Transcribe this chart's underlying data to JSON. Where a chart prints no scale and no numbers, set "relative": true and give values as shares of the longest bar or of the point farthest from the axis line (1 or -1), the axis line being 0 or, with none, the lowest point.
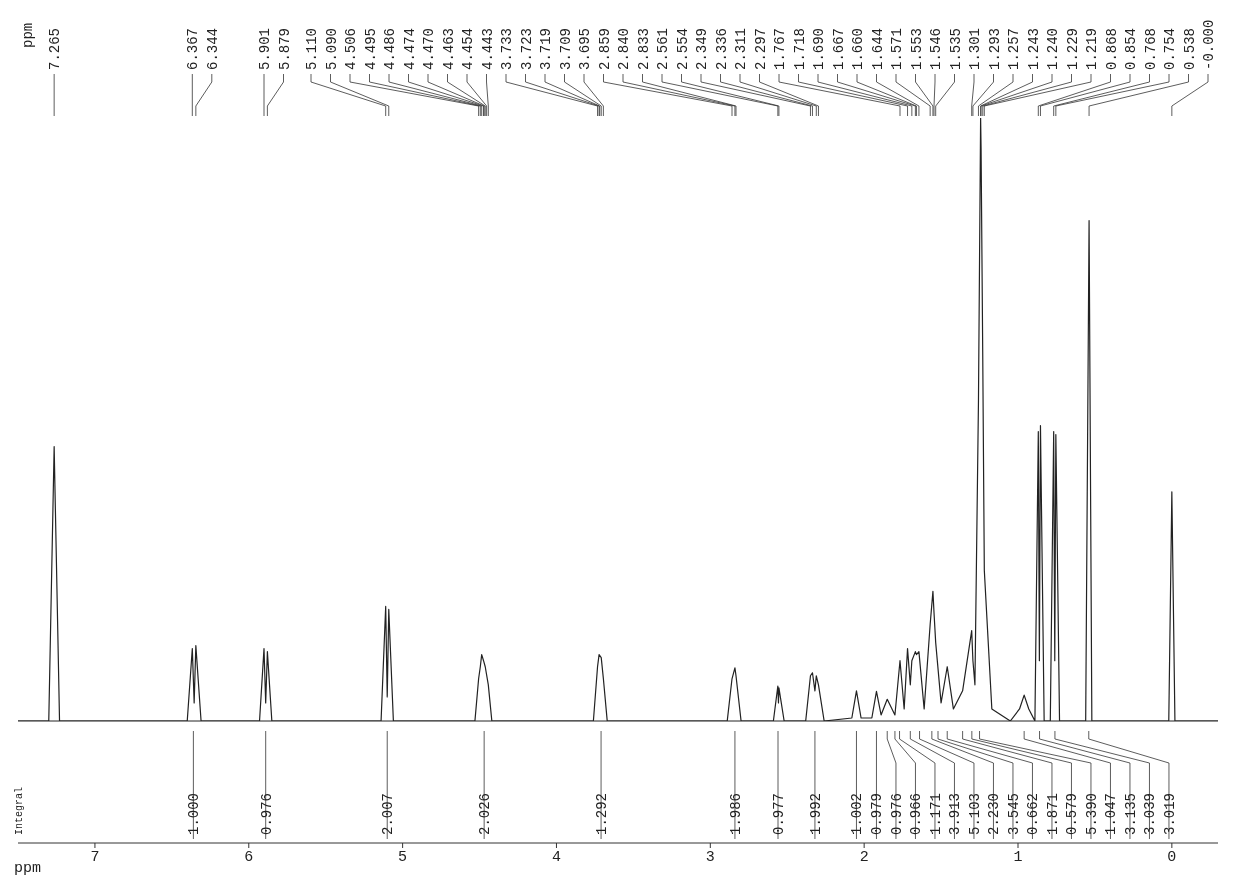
{
  "chart_data": {
    "type": "line",
    "relative": true,
    "xlabel": "ppm",
    "color": "#222222",
    "marker": "none",
    "line_style": "solid",
    "xlim": [
      7.5,
      -0.3
    ],
    "xticks": [
      7,
      6,
      5,
      4,
      3,
      2,
      1,
      0
    ],
    "x": [
      7.5,
      7.3,
      7.265,
      7.23,
      6.4,
      6.367,
      6.355,
      6.344,
      6.31,
      5.93,
      5.901,
      5.89,
      5.879,
      5.85,
      5.14,
      5.11,
      5.1,
      5.09,
      5.06,
      4.53,
      4.506,
      4.495,
      4.486,
      4.474,
      4.463,
      4.443,
      4.42,
      3.76,
      3.733,
      3.723,
      3.709,
      3.695,
      3.67,
      2.89,
      2.859,
      2.84,
      2.833,
      2.8,
      2.59,
      2.561,
      2.557,
      2.554,
      2.52,
      2.38,
      2.349,
      2.336,
      2.32,
      2.311,
      2.297,
      2.26,
      2.08,
      2.05,
      2.02,
      1.95,
      1.92,
      1.89,
      1.85,
      1.8,
      1.767,
      1.74,
      1.718,
      1.7,
      1.69,
      1.667,
      1.66,
      1.644,
      1.61,
      1.571,
      1.553,
      1.546,
      1.535,
      1.5,
      1.46,
      1.42,
      1.36,
      1.301,
      1.293,
      1.28,
      1.257,
      1.243,
      1.24,
      1.229,
      1.219,
      1.17,
      1.05,
      0.99,
      0.96,
      0.93,
      0.89,
      0.868,
      0.861,
      0.854,
      0.83,
      0.79,
      0.768,
      0.761,
      0.754,
      0.73,
      0.56,
      0.538,
      0.52,
      0.02,
      0,
      -0.02,
      -0.3
    ],
    "values": [
      0,
      0,
      0.455,
      0,
      0,
      0.12,
      0.03,
      0.125,
      0,
      0,
      0.12,
      0.03,
      0.115,
      0,
      0,
      0.19,
      0.04,
      0.185,
      0,
      0,
      0.07,
      0.09,
      0.11,
      0.1,
      0.09,
      0.06,
      0,
      0,
      0.09,
      0.11,
      0.105,
      0.07,
      0,
      0,
      0.07,
      0.088,
      0.075,
      0,
      0,
      0.058,
      0.03,
      0.055,
      0,
      0,
      0.075,
      0.08,
      0.05,
      0.075,
      0.06,
      0,
      0.005,
      0.05,
      0.005,
      0.005,
      0.049,
      0.01,
      0.036,
      0.01,
      0.1,
      0.02,
      0.12,
      0.06,
      0.1,
      0.115,
      0.11,
      0.115,
      0.02,
      0.16,
      0.215,
      0.18,
      0.13,
      0.03,
      0.09,
      0.02,
      0.05,
      0.15,
      0.1,
      0.06,
      0.53,
      1,
      0.95,
      0.6,
      0.25,
      0.02,
      0,
      0.02,
      0.043,
      0.02,
      0,
      0.48,
      0.1,
      0.49,
      0,
      0,
      0.48,
      0.1,
      0.475,
      0,
      0,
      0.83,
      0,
      0,
      0.38,
      0,
      0
    ],
    "annotations": [
      "ppm",
      "Integral",
      {
        "text": "7.265",
        "x": 7.265
      },
      {
        "text": "6.367",
        "x": 6.367
      },
      {
        "text": "6.344",
        "x": 6.344
      },
      {
        "text": "5.901",
        "x": 5.901
      },
      {
        "text": "5.879",
        "x": 5.879
      },
      {
        "text": "5.110",
        "x": 5.11
      },
      {
        "text": "5.090",
        "x": 5.09
      },
      {
        "text": "4.506",
        "x": 4.506
      },
      {
        "text": "4.495",
        "x": 4.495
      },
      {
        "text": "4.486",
        "x": 4.486
      },
      {
        "text": "4.474",
        "x": 4.474
      },
      {
        "text": "4.470",
        "x": 4.47
      },
      {
        "text": "4.463",
        "x": 4.463
      },
      {
        "text": "4.454",
        "x": 4.454
      },
      {
        "text": "4.443",
        "x": 4.443
      },
      {
        "text": "3.733",
        "x": 3.733
      },
      {
        "text": "3.723",
        "x": 3.723
      },
      {
        "text": "3.719",
        "x": 3.719
      },
      {
        "text": "3.709",
        "x": 3.709
      },
      {
        "text": "3.695",
        "x": 3.695
      },
      {
        "text": "2.859",
        "x": 2.859
      },
      {
        "text": "2.840",
        "x": 2.84
      },
      {
        "text": "2.833",
        "x": 2.833
      },
      {
        "text": "2.561",
        "x": 2.561
      },
      {
        "text": "2.554",
        "x": 2.554
      },
      {
        "text": "2.349",
        "x": 2.349
      },
      {
        "text": "2.336",
        "x": 2.336
      },
      {
        "text": "2.311",
        "x": 2.311
      },
      {
        "text": "2.297",
        "x": 2.297
      },
      {
        "text": "1.767",
        "x": 1.767
      },
      {
        "text": "1.718",
        "x": 1.718
      },
      {
        "text": "1.690",
        "x": 1.69
      },
      {
        "text": "1.667",
        "x": 1.667
      },
      {
        "text": "1.660",
        "x": 1.66
      },
      {
        "text": "1.644",
        "x": 1.644
      },
      {
        "text": "1.571",
        "x": 1.571
      },
      {
        "text": "1.553",
        "x": 1.553
      },
      {
        "text": "1.546",
        "x": 1.546
      },
      {
        "text": "1.535",
        "x": 1.535
      },
      {
        "text": "1.301",
        "x": 1.301
      },
      {
        "text": "1.293",
        "x": 1.293
      },
      {
        "text": "1.257",
        "x": 1.257
      },
      {
        "text": "1.243",
        "x": 1.243
      },
      {
        "text": "1.240",
        "x": 1.24
      },
      {
        "text": "1.229",
        "x": 1.229
      },
      {
        "text": "1.219",
        "x": 1.219
      },
      {
        "text": "0.868",
        "x": 0.868
      },
      {
        "text": "0.854",
        "x": 0.854
      },
      {
        "text": "0.768",
        "x": 0.768
      },
      {
        "text": "0.754",
        "x": 0.754
      },
      {
        "text": "0.538",
        "x": 0.538
      },
      {
        "text": "-0.000",
        "x": 0
      },
      {
        "text": "1.000",
        "x": 6.36
      },
      {
        "text": "0.976",
        "x": 5.89
      },
      {
        "text": "2.007",
        "x": 5.1
      },
      {
        "text": "2.026",
        "x": 4.47
      },
      {
        "text": "1.292",
        "x": 3.71
      },
      {
        "text": "1.986",
        "x": 2.84
      },
      {
        "text": "0.977",
        "x": 2.56
      },
      {
        "text": "1.992",
        "x": 2.32
      },
      {
        "text": "1.002",
        "x": 2.05
      },
      {
        "text": "0.979",
        "x": 1.92
      },
      {
        "text": "0.976",
        "x": 1.85
      },
      {
        "text": "0.966",
        "x": 1.8
      },
      {
        "text": "1.171",
        "x": 1.77
      },
      {
        "text": "3.913",
        "x": 1.7
      },
      {
        "text": "5.103",
        "x": 1.64
      },
      {
        "text": "2.230",
        "x": 1.56
      },
      {
        "text": "3.545",
        "x": 1.52
      },
      {
        "text": "0.662",
        "x": 1.46
      },
      {
        "text": "1.871",
        "x": 1.36
      },
      {
        "text": "0.579",
        "x": 1.3
      },
      {
        "text": "5.390",
        "x": 1.25
      },
      {
        "text": "1.047",
        "x": 0.96
      },
      {
        "text": "3.135",
        "x": 0.86
      },
      {
        "text": "3.039",
        "x": 0.76
      },
      {
        "text": "3.019",
        "x": 0.54
      }
    ]
  }
}
